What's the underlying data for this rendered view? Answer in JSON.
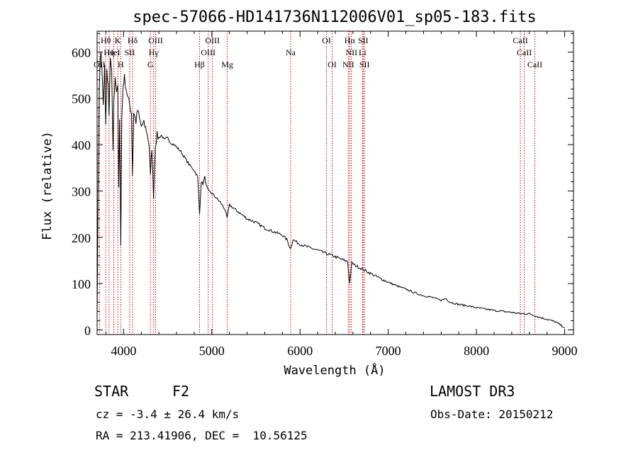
{
  "chart_data": {
    "type": "line",
    "title": "spec-57066-HD141736N112006V01_sp05-183.fits",
    "xlabel": "Wavelength (Å)",
    "ylabel": "Flux (relative)",
    "xlim": [
      3700,
      9100
    ],
    "ylim": [
      -10,
      645
    ],
    "xticks": [
      4000,
      5000,
      6000,
      7000,
      8000,
      9000
    ],
    "yticks": [
      0,
      100,
      200,
      300,
      400,
      500,
      600
    ],
    "series": [
      {
        "name": "spectrum",
        "points": [
          [
            3700,
            30
          ],
          [
            3715,
            380
          ],
          [
            3725,
            520
          ],
          [
            3735,
            585
          ],
          [
            3745,
            595
          ],
          [
            3755,
            560
          ],
          [
            3770,
            480
          ],
          [
            3785,
            575
          ],
          [
            3797,
            440
          ],
          [
            3810,
            560
          ],
          [
            3825,
            520
          ],
          [
            3835,
            470
          ],
          [
            3850,
            580
          ],
          [
            3865,
            560
          ],
          [
            3880,
            380
          ],
          [
            3890,
            500
          ],
          [
            3905,
            540
          ],
          [
            3920,
            520
          ],
          [
            3935,
            530
          ],
          [
            3945,
            300
          ],
          [
            3955,
            450
          ],
          [
            3968,
            190
          ],
          [
            3980,
            460
          ],
          [
            3995,
            530
          ],
          [
            4010,
            545
          ],
          [
            4030,
            520
          ],
          [
            4050,
            500
          ],
          [
            4070,
            485
          ],
          [
            4090,
            470
          ],
          [
            4101,
            335
          ],
          [
            4115,
            470
          ],
          [
            4140,
            450
          ],
          [
            4160,
            475
          ],
          [
            4180,
            455
          ],
          [
            4200,
            440
          ],
          [
            4230,
            445
          ],
          [
            4260,
            430
          ],
          [
            4290,
            400
          ],
          [
            4305,
            330
          ],
          [
            4320,
            395
          ],
          [
            4340,
            290
          ],
          [
            4360,
            400
          ],
          [
            4380,
            420
          ],
          [
            4400,
            415
          ],
          [
            4430,
            420
          ],
          [
            4460,
            410
          ],
          [
            4500,
            415
          ],
          [
            4530,
            405
          ],
          [
            4570,
            400
          ],
          [
            4600,
            395
          ],
          [
            4650,
            385
          ],
          [
            4700,
            370
          ],
          [
            4750,
            355
          ],
          [
            4800,
            345
          ],
          [
            4840,
            330
          ],
          [
            4861,
            250
          ],
          [
            4880,
            320
          ],
          [
            4900,
            315
          ],
          [
            4920,
            330
          ],
          [
            4940,
            310
          ],
          [
            4960,
            300
          ],
          [
            5000,
            295
          ],
          [
            5050,
            285
          ],
          [
            5100,
            275
          ],
          [
            5150,
            260
          ],
          [
            5173,
            240
          ],
          [
            5200,
            270
          ],
          [
            5250,
            262
          ],
          [
            5300,
            255
          ],
          [
            5400,
            240
          ],
          [
            5500,
            232
          ],
          [
            5600,
            220
          ],
          [
            5700,
            212
          ],
          [
            5800,
            205
          ],
          [
            5850,
            195
          ],
          [
            5893,
            175
          ],
          [
            5920,
            195
          ],
          [
            6000,
            185
          ],
          [
            6100,
            178
          ],
          [
            6200,
            172
          ],
          [
            6300,
            165
          ],
          [
            6400,
            158
          ],
          [
            6500,
            150
          ],
          [
            6540,
            148
          ],
          [
            6563,
            100
          ],
          [
            6585,
            145
          ],
          [
            6620,
            140
          ],
          [
            6700,
            132
          ],
          [
            6800,
            122
          ],
          [
            6900,
            112
          ],
          [
            7000,
            103
          ],
          [
            7100,
            95
          ],
          [
            7200,
            88
          ],
          [
            7300,
            80
          ],
          [
            7400,
            74
          ],
          [
            7500,
            70
          ],
          [
            7600,
            64
          ],
          [
            7650,
            68
          ],
          [
            7700,
            60
          ],
          [
            7800,
            55
          ],
          [
            7900,
            52
          ],
          [
            8000,
            48
          ],
          [
            8100,
            45
          ],
          [
            8200,
            42
          ],
          [
            8300,
            40
          ],
          [
            8400,
            38
          ],
          [
            8500,
            35
          ],
          [
            8600,
            35
          ],
          [
            8700,
            28
          ],
          [
            8800,
            23
          ],
          [
            8900,
            17
          ],
          [
            9000,
            5
          ]
        ]
      }
    ],
    "lines": [
      {
        "wl": 3727,
        "label": "OII",
        "row": 3
      },
      {
        "wl": 3798,
        "label": "Hθ",
        "row": 1
      },
      {
        "wl": 3835,
        "label": "Hη",
        "row": 2
      },
      {
        "wl": 3889,
        "label": "HeI",
        "row": 2
      },
      {
        "wl": 3934,
        "label": "K",
        "row": 1
      },
      {
        "wl": 3968,
        "label": "H",
        "row": 3
      },
      {
        "wl": 4069,
        "label": "SII",
        "row": 2
      },
      {
        "wl": 4102,
        "label": "Hδ",
        "row": 1
      },
      {
        "wl": 4304,
        "label": "G",
        "row": 3
      },
      {
        "wl": 4340,
        "label": "Hγ",
        "row": 2
      },
      {
        "wl": 4363,
        "label": "OIII",
        "row": 1
      },
      {
        "wl": 4861,
        "label": "Hβ",
        "row": 3
      },
      {
        "wl": 4959,
        "label": "OIII",
        "row": 2
      },
      {
        "wl": 5007,
        "label": "OIII",
        "row": 1
      },
      {
        "wl": 5175,
        "label": "Mg",
        "row": 3
      },
      {
        "wl": 5894,
        "label": "Na",
        "row": 2
      },
      {
        "wl": 6300,
        "label": "OI",
        "row": 1
      },
      {
        "wl": 6364,
        "label": "OI",
        "row": 3
      },
      {
        "wl": 6548,
        "label": "NII",
        "row": 3
      },
      {
        "wl": 6563,
        "label": "Hα",
        "row": 1
      },
      {
        "wl": 6583,
        "label": "NII",
        "row": 2
      },
      {
        "wl": 6708,
        "label": "Li",
        "row": 2
      },
      {
        "wl": 6716,
        "label": "SII",
        "row": 1
      },
      {
        "wl": 6731,
        "label": "SII",
        "row": 3
      },
      {
        "wl": 8498,
        "label": "CaII",
        "row": 1
      },
      {
        "wl": 8542,
        "label": "CaII",
        "row": 2
      },
      {
        "wl": 8662,
        "label": "CaII",
        "row": 3
      }
    ]
  },
  "info": {
    "class": "STAR",
    "subclass": "F2",
    "survey": "LAMOST DR3",
    "cz": "cz = -3.4 ± 26.4 km/s",
    "obs_date": "Obs-Date: 20150212",
    "coords": "RA = 213.41906, DEC =  10.56125"
  },
  "colors": {
    "line_marker": "#cc0000",
    "spectrum": "#000000"
  }
}
